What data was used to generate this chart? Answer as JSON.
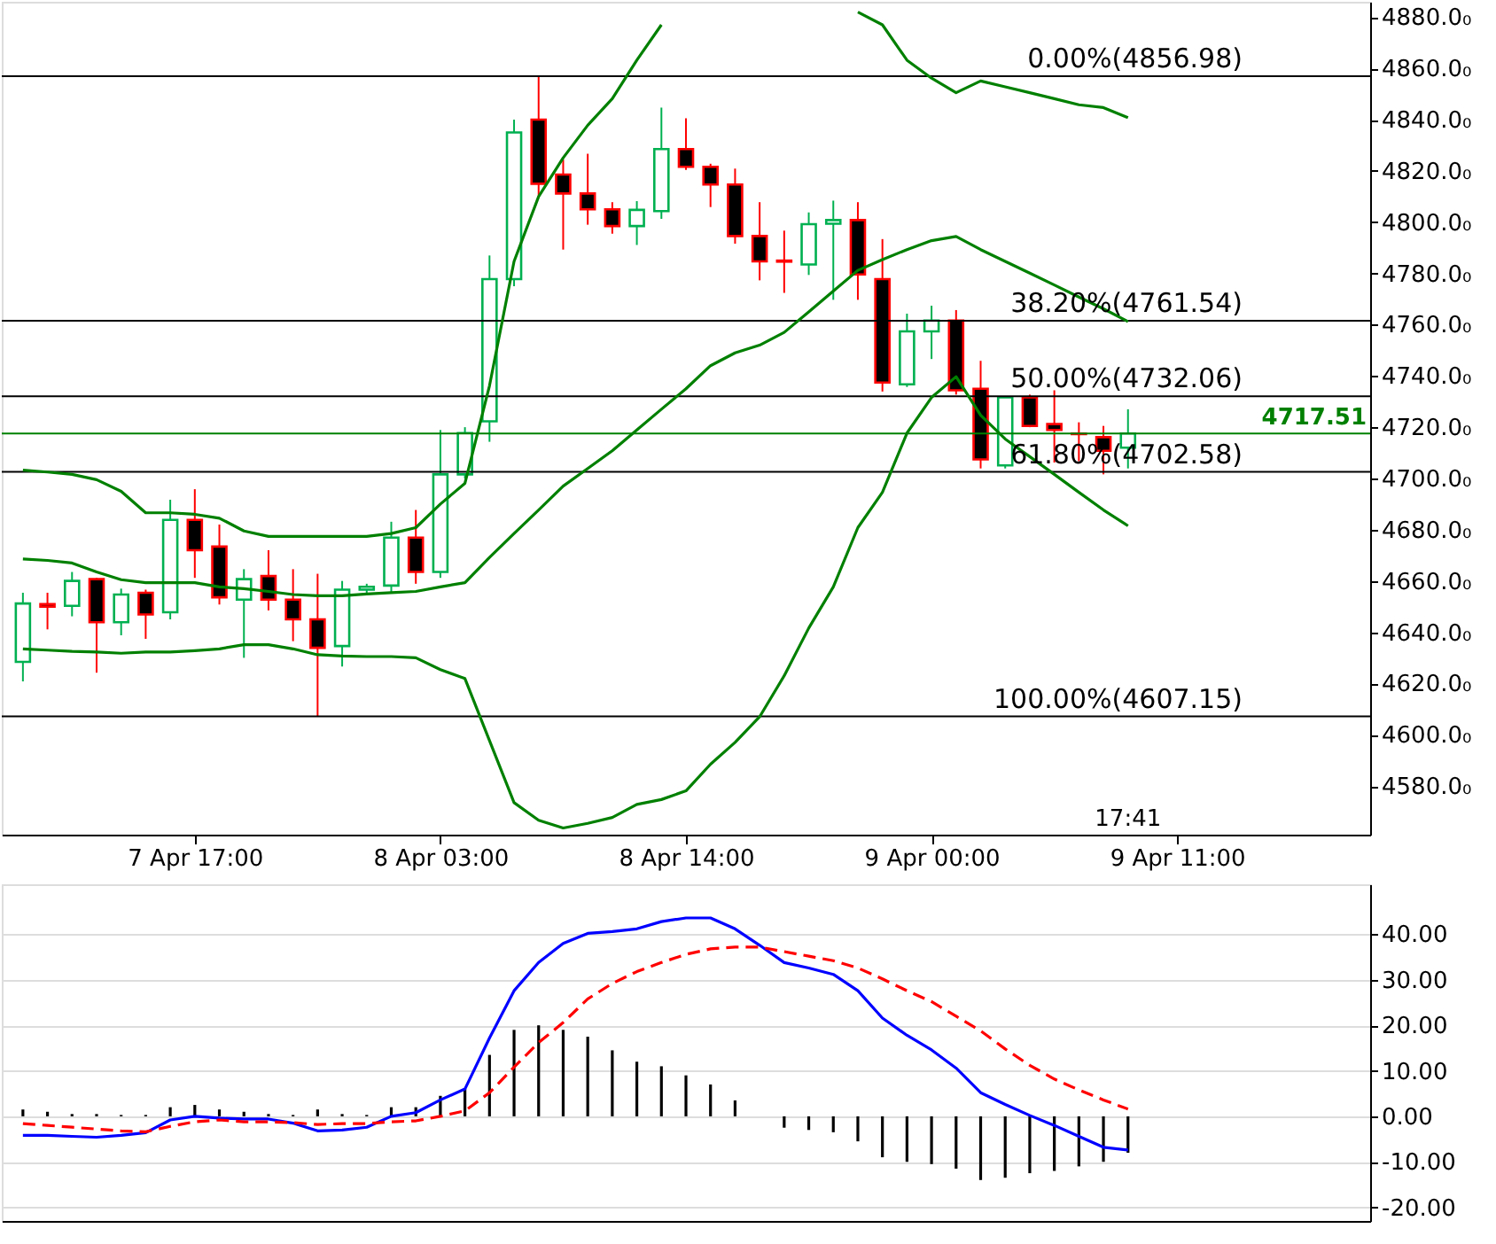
{
  "chart_data": [
    {
      "type": "candlestick",
      "categories": [
        null,
        null,
        null,
        null,
        null,
        null,
        null,
        "7 Apr 17:00",
        null,
        null,
        null,
        null,
        null,
        null,
        null,
        null,
        null,
        "8 Apr 03:00",
        null,
        null,
        null,
        null,
        null,
        null,
        null,
        null,
        null,
        "8 Apr 14:00",
        null,
        null,
        null,
        null,
        null,
        null,
        null,
        null,
        null,
        "9 Apr 00:00",
        null,
        null,
        null,
        null,
        null,
        null,
        null,
        null,
        null,
        "9 Apr 11:00",
        null,
        null,
        null,
        null,
        null,
        null,
        null
      ],
      "ohlc": [
        [
          4628.4,
          4655.4,
          4620.8,
          4651.2
        ],
        [
          4651,
          4655.4,
          4641.1,
          4650
        ],
        [
          4650.3,
          4663.5,
          4646.2,
          4660
        ],
        [
          4660.7,
          4661.2,
          4624.2,
          4643.9
        ],
        [
          4643.9,
          4657,
          4638.8,
          4654.7
        ],
        [
          4655.4,
          4656.6,
          4637.4,
          4646.9
        ],
        [
          4647.8,
          4691.7,
          4645,
          4683.8
        ],
        [
          4683.8,
          4695.8,
          4661.2,
          4672
        ],
        [
          4673.4,
          4682,
          4650.8,
          4653.6
        ],
        [
          4652.7,
          4664.6,
          4630,
          4660.7
        ],
        [
          4661.9,
          4672,
          4648.5,
          4652.7
        ],
        [
          4652.7,
          4664.6,
          4636.5,
          4645
        ],
        [
          4645,
          4662.8,
          4607.15,
          4633.9
        ],
        [
          4634.6,
          4660,
          4626.6,
          4656.6
        ],
        [
          4656.6,
          4658.9,
          4655.4,
          4657.7
        ],
        [
          4658.2,
          4683.1,
          4655.4,
          4676.9
        ],
        [
          4676.9,
          4687.7,
          4658.9,
          4663.5
        ],
        [
          4663.5,
          4718.9,
          4661.2,
          4701.6
        ],
        [
          4701.6,
          4720,
          4700,
          4717.7
        ],
        [
          4722.3,
          4787,
          4714.3,
          4777.8
        ],
        [
          4777.8,
          4840,
          4775,
          4835
        ],
        [
          4840,
          4856.98,
          4810,
          4815
        ],
        [
          4818.6,
          4824.4,
          4789.3,
          4811.2
        ],
        [
          4811.2,
          4826.7,
          4799,
          4805
        ],
        [
          4805,
          4807.8,
          4795.5,
          4798.5
        ],
        [
          4798.5,
          4808.2,
          4791.1,
          4804.8
        ],
        [
          4804.3,
          4844.7,
          4801.3,
          4828.5
        ],
        [
          4828.5,
          4840.5,
          4820.4,
          4821.6
        ],
        [
          4821.6,
          4822.8,
          4805.9,
          4814.7
        ],
        [
          4814.7,
          4820.9,
          4791.6,
          4794.6
        ],
        [
          4794.6,
          4807.8,
          4777.3,
          4784.7
        ],
        [
          4785,
          4796.7,
          4772.4,
          4784.6
        ],
        [
          4783.5,
          4803.8,
          4779.4,
          4799.2
        ],
        [
          4799.4,
          4808.4,
          4769.7,
          4800.8
        ],
        [
          4800.8,
          4807.8,
          4769.7,
          4779.6
        ],
        [
          4777.8,
          4793.4,
          4733.9,
          4737.4
        ],
        [
          4736.7,
          4764.3,
          4735.7,
          4757.4
        ],
        [
          4757.4,
          4767.4,
          4746.6,
          4761.6
        ],
        [
          4761.6,
          4765.7,
          4732.7,
          4734.4
        ],
        [
          4735,
          4745.9,
          4703.9,
          4707.4
        ],
        [
          4705.1,
          4732,
          4703.9,
          4731.6
        ],
        [
          4731.6,
          4732.7,
          4720,
          4720.5
        ],
        [
          4721.2,
          4734.4,
          4706.2,
          4718.9
        ],
        [
          4717.5,
          4721.9,
          4706.7,
          4717.3
        ],
        [
          4716.1,
          4720.5,
          4701.6,
          4710.8
        ],
        [
          4712,
          4727,
          4703.9,
          4717.51
        ],
        null,
        null,
        null,
        null,
        null,
        null,
        null,
        null,
        null
      ],
      "colors": [
        "#00b050",
        "#ff0000",
        "#00b050",
        "#ff0000",
        "#00b050",
        "#ff0000",
        "#00b050",
        "#ff0000",
        "#ff0000",
        "#00b050",
        "#ff0000",
        "#ff0000",
        "#ff0000",
        "#00b050",
        "#00b050",
        "#00b050",
        "#ff0000",
        "#00b050",
        "#00b050",
        "#00b050",
        "#00b050",
        "#ff0000",
        "#ff0000",
        "#ff0000",
        "#ff0000",
        "#00b050",
        "#00b050",
        "#ff0000",
        "#ff0000",
        "#ff0000",
        "#ff0000",
        "#ff0000",
        "#00b050",
        "#00b050",
        "#ff0000",
        "#ff0000",
        "#00b050",
        "#00b050",
        "#ff0000",
        "#ff0000",
        "#00b050",
        "#ff0000",
        "#ff0000",
        "#ff0000",
        "#ff0000",
        "#00b050",
        null,
        null,
        null,
        null,
        null,
        null,
        null,
        null,
        null
      ],
      "series": [
        {
          "type": "line",
          "color": "#008000",
          "values": [
            4703.2,
            4702.5,
            4701.6,
            4699.5,
            4695,
            4686.6,
            4686.6,
            4686,
            4684.5,
            4679.5,
            4677.4,
            4677.4,
            4677.4,
            4677.4,
            4677.4,
            4678.5,
            4680.8,
            4690,
            4698.1,
            4736.2,
            4784.7,
            4810,
            4825.1,
            4837.8,
            4848.2,
            4863.2,
            4877,
            null,
            null,
            null,
            null,
            null,
            null,
            null,
            4882,
            4877,
            4863.2,
            4856.2,
            4850.5,
            4855.1,
            4852.8,
            4850.5,
            4848.2,
            4845.8,
            4844.7,
            4840.8,
            null,
            null,
            null,
            null,
            null,
            null,
            null,
            null,
            null
          ]
        },
        {
          "type": "line",
          "color": "#008000",
          "values": [
            4668.6,
            4668,
            4667,
            4663.5,
            4660.5,
            4659.3,
            4659.3,
            4659.3,
            4657.7,
            4657,
            4655.9,
            4654.7,
            4654.2,
            4654.2,
            4654.9,
            4655.4,
            4655.9,
            4657.7,
            4659.3,
            4669.2,
            4678.5,
            4687.7,
            4697,
            4703.9,
            4710.8,
            4718.9,
            4727,
            4735,
            4744,
            4749,
            4752,
            4757,
            4765,
            4773.1,
            4781.2,
            4785.4,
            4789.3,
            4792.8,
            4794.4,
            4789.3,
            4784.7,
            4780.1,
            4775.5,
            4770.8,
            4766.2,
            4761.2,
            null,
            null,
            null,
            null,
            null,
            null,
            null,
            null,
            null
          ]
        },
        {
          "type": "line",
          "color": "#008000",
          "values": [
            4633.5,
            4633,
            4632.5,
            4632.3,
            4631.8,
            4632.3,
            4632.3,
            4632.8,
            4633.5,
            4635.1,
            4635.1,
            4633.5,
            4631.2,
            4630.7,
            4630.5,
            4630.5,
            4630,
            4625.4,
            4621.9,
            4597.7,
            4573.5,
            4566.6,
            4563.6,
            4565.4,
            4567.7,
            4572.8,
            4574.7,
            4578.1,
            4588.5,
            4597,
            4607,
            4623,
            4641.6,
            4657.7,
            4680.8,
            4694.6,
            4717.7,
            4731.6,
            4739.7,
            4724.7,
            4715.4,
            4708.5,
            4701.6,
            4694.6,
            4687.7,
            4681.5,
            null,
            null,
            null,
            null,
            null,
            null,
            null,
            null,
            null
          ]
        }
      ],
      "ylim": [
        4561,
        4886
      ],
      "yticks": [
        {
          "value": 4580,
          "label": "4580.0₀"
        },
        {
          "value": 4600,
          "label": "4600.0₀"
        },
        {
          "value": 4620,
          "label": "4620.0₀"
        },
        {
          "value": 4640,
          "label": "4640.0₀"
        },
        {
          "value": 4660,
          "label": "4660.0₀"
        },
        {
          "value": 4680,
          "label": "4680.0₀"
        },
        {
          "value": 4700,
          "label": "4700.0₀"
        },
        {
          "value": 4720,
          "label": "4720.0₀"
        },
        {
          "value": 4740,
          "label": "4740.0₀"
        },
        {
          "value": 4760,
          "label": "4760.0₀"
        },
        {
          "value": 4780,
          "label": "4780.0₀"
        },
        {
          "value": 4800,
          "label": "4800.0₀"
        },
        {
          "value": 4820,
          "label": "4820.0₀"
        },
        {
          "value": 4840,
          "label": "4840.0₀"
        },
        {
          "value": 4860,
          "label": "4860.0₀"
        },
        {
          "value": 4880,
          "label": "4880.0₀"
        }
      ],
      "ref_lines": [
        {
          "axis": "y",
          "value": 4856.98,
          "label": "0.00%(4856.98)",
          "color": "#000000"
        },
        {
          "axis": "y",
          "value": 4761.54,
          "label": "38.20%(4761.54)",
          "color": "#000000"
        },
        {
          "axis": "y",
          "value": 4732.06,
          "label": "50.00%(4732.06)",
          "color": "#000000"
        },
        {
          "axis": "y",
          "value": 4702.58,
          "label": "61.80%(4702.58)",
          "color": "#000000"
        },
        {
          "axis": "y",
          "value": 4607.15,
          "label": "100.00%(4607.15)",
          "color": "#000000"
        },
        {
          "axis": "y",
          "value": 4717.51,
          "label": "4717.51",
          "color": "#008000"
        }
      ],
      "annotations": [
        "17:41"
      ],
      "grid": false
    },
    {
      "type": "line",
      "categories": [
        null,
        null,
        null,
        null,
        null,
        null,
        null,
        null,
        null,
        null,
        null,
        null,
        null,
        null,
        null,
        null,
        null,
        null,
        null,
        null,
        null,
        null,
        null,
        null,
        null,
        null,
        null,
        null,
        null,
        null,
        null,
        null,
        null,
        null,
        null,
        null,
        null,
        null,
        null,
        null,
        null,
        null,
        null,
        null,
        null,
        null,
        null,
        null,
        null,
        null,
        null,
        null,
        null,
        null,
        null
      ],
      "series": [
        {
          "type": "bar",
          "color": "#000000",
          "values": [
            1.5,
            1,
            0.5,
            0.5,
            0.3,
            0.3,
            2,
            2.5,
            1.5,
            1,
            0.5,
            0.3,
            1.5,
            0.5,
            0.3,
            2,
            2,
            4.5,
            6,
            13.5,
            19,
            20,
            19,
            17.5,
            14.5,
            12,
            11,
            9,
            7,
            3.5,
            0,
            -2.5,
            -3,
            -3.5,
            -5.5,
            -9,
            -10,
            -10.5,
            -11.5,
            -14,
            -13.5,
            -12.5,
            -12,
            -11,
            -10,
            -8,
            null,
            null,
            null,
            null,
            null,
            null,
            null,
            null,
            null
          ]
        },
        {
          "type": "line",
          "color": "#0000ff",
          "line_style": "solid",
          "values": [
            -4.2,
            -4.2,
            -4.4,
            -4.6,
            -4.2,
            -3.6,
            -0.8,
            0,
            -0.4,
            -0.6,
            -0.6,
            -1.5,
            -3.2,
            -3,
            -2.4,
            0,
            0.8,
            3.6,
            6,
            17.2,
            27.6,
            33.8,
            38,
            40.2,
            40.6,
            41.2,
            42.8,
            43.6,
            43.6,
            41.2,
            37.6,
            33.8,
            32.6,
            31.2,
            27.6,
            21.6,
            17.8,
            14.6,
            10.6,
            5.2,
            2.6,
            0.2,
            -2,
            -4.4,
            -6.8,
            -7.4,
            null,
            null,
            null,
            null,
            null,
            null,
            null,
            null,
            null
          ]
        },
        {
          "type": "line",
          "color": "#ff0000",
          "line_style": "dashed",
          "values": [
            -1.6,
            -2,
            -2.4,
            -2.8,
            -3.2,
            -3.4,
            -2.2,
            -1.2,
            -0.8,
            -1.2,
            -1.2,
            -1.4,
            -1.8,
            -1.6,
            -1.6,
            -1.2,
            -1,
            0,
            1.2,
            5.2,
            10.8,
            16.2,
            20.6,
            25.8,
            29.2,
            31.8,
            33.8,
            35.6,
            36.8,
            37.2,
            37.2,
            36.2,
            35.2,
            34.2,
            32.6,
            30.2,
            27.6,
            25.2,
            22,
            18.8,
            14.8,
            11.2,
            8.2,
            5.8,
            3.6,
            1.6,
            null,
            null,
            null,
            null,
            null,
            null,
            null,
            null,
            null
          ]
        }
      ],
      "ylim": [
        -23,
        51
      ],
      "yticks": [
        {
          "value": -20,
          "label": "-20.00"
        },
        {
          "value": -10,
          "label": "-10.00"
        },
        {
          "value": 0,
          "label": "0.00"
        },
        {
          "value": 10,
          "label": "10.00"
        },
        {
          "value": 20,
          "label": "20.00"
        },
        {
          "value": 30,
          "label": "30.00"
        },
        {
          "value": 40,
          "label": "40.00"
        }
      ],
      "grid": "y",
      "tick_labels": "y"
    }
  ]
}
